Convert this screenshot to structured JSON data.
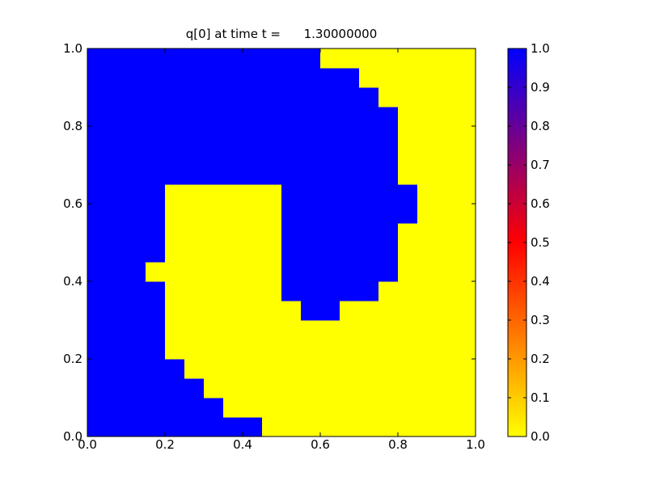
{
  "chart_data": {
    "type": "heatmap",
    "title": "q[0] at time t =      1.30000000",
    "xlim": [
      0,
      1
    ],
    "ylim": [
      0,
      1
    ],
    "xticks": [
      {
        "value": 0,
        "label": "0.0"
      },
      {
        "value": 0.2,
        "label": "0.2"
      },
      {
        "value": 0.4,
        "label": "0.4"
      },
      {
        "value": 0.6,
        "label": "0.6"
      },
      {
        "value": 0.8,
        "label": "0.8"
      },
      {
        "value": 1,
        "label": "1.0"
      }
    ],
    "yticks": [
      {
        "value": 0,
        "label": "0.0"
      },
      {
        "value": 0.2,
        "label": "0.2"
      },
      {
        "value": 0.4,
        "label": "0.4"
      },
      {
        "value": 0.6,
        "label": "0.6"
      },
      {
        "value": 0.8,
        "label": "0.8"
      },
      {
        "value": 1,
        "label": "1.0"
      }
    ],
    "colormap": [
      "#ffff00",
      "#ff0000",
      "#0000ff"
    ],
    "colorbar": {
      "lim": [
        0,
        1
      ],
      "ticks": [
        {
          "value": 0,
          "label": "0.0"
        },
        0.1,
        0.2,
        0.3,
        0.4,
        0.5,
        0.6,
        0.7,
        0.8,
        0.9,
        {
          "value": 1,
          "label": "1.0"
        }
      ]
    },
    "z": [
      [
        1,
        1,
        1,
        1,
        1,
        1,
        1,
        1,
        1,
        0,
        0,
        0,
        0,
        0,
        0,
        0,
        0,
        0,
        0,
        0
      ],
      [
        1,
        1,
        1,
        1,
        1,
        1,
        1,
        0,
        0,
        0,
        0,
        0,
        0,
        0,
        0,
        0,
        0,
        0,
        0,
        0
      ],
      [
        1,
        1,
        1,
        1,
        1,
        1,
        0,
        0,
        0,
        0,
        0,
        0,
        0,
        0,
        0,
        0,
        0,
        0,
        0,
        0
      ],
      [
        1,
        1,
        1,
        1,
        1,
        0,
        0,
        0,
        0,
        0,
        0,
        0,
        0,
        0,
        0,
        0,
        0,
        0,
        0,
        0
      ],
      [
        1,
        1,
        1,
        1,
        0,
        0,
        0,
        0,
        0,
        0,
        0,
        0,
        0,
        0,
        0,
        0,
        0,
        0,
        0,
        0
      ],
      [
        1,
        1,
        1,
        1,
        0,
        0,
        0,
        0,
        0,
        0,
        0,
        0,
        0,
        0,
        0,
        0,
        0,
        0,
        0,
        0
      ],
      [
        1,
        1,
        1,
        1,
        0,
        0,
        0,
        0,
        0,
        0,
        0,
        1,
        1,
        0,
        0,
        0,
        0,
        0,
        0,
        0
      ],
      [
        1,
        1,
        1,
        1,
        0,
        0,
        0,
        0,
        0,
        0,
        1,
        1,
        1,
        1,
        1,
        0,
        0,
        0,
        0,
        0
      ],
      [
        1,
        1,
        1,
        0,
        0,
        0,
        0,
        0,
        0,
        0,
        1,
        1,
        1,
        1,
        1,
        1,
        0,
        0,
        0,
        0
      ],
      [
        1,
        1,
        1,
        1,
        0,
        0,
        0,
        0,
        0,
        0,
        1,
        1,
        1,
        1,
        1,
        1,
        0,
        0,
        0,
        0
      ],
      [
        1,
        1,
        1,
        1,
        0,
        0,
        0,
        0,
        0,
        0,
        1,
        1,
        1,
        1,
        1,
        1,
        0,
        0,
        0,
        0
      ],
      [
        1,
        1,
        1,
        1,
        0,
        0,
        0,
        0,
        0,
        0,
        1,
        1,
        1,
        1,
        1,
        1,
        1,
        0,
        0,
        0
      ],
      [
        1,
        1,
        1,
        1,
        0,
        0,
        0,
        0,
        0,
        0,
        1,
        1,
        1,
        1,
        1,
        1,
        1,
        0,
        0,
        0
      ],
      [
        1,
        1,
        1,
        1,
        1,
        1,
        1,
        1,
        1,
        1,
        1,
        1,
        1,
        1,
        1,
        1,
        0,
        0,
        0,
        0
      ],
      [
        1,
        1,
        1,
        1,
        1,
        1,
        1,
        1,
        1,
        1,
        1,
        1,
        1,
        1,
        1,
        1,
        0,
        0,
        0,
        0
      ],
      [
        1,
        1,
        1,
        1,
        1,
        1,
        1,
        1,
        1,
        1,
        1,
        1,
        1,
        1,
        1,
        1,
        0,
        0,
        0,
        0
      ],
      [
        1,
        1,
        1,
        1,
        1,
        1,
        1,
        1,
        1,
        1,
        1,
        1,
        1,
        1,
        1,
        1,
        0,
        0,
        0,
        0
      ],
      [
        1,
        1,
        1,
        1,
        1,
        1,
        1,
        1,
        1,
        1,
        1,
        1,
        1,
        1,
        1,
        0,
        0,
        0,
        0,
        0
      ],
      [
        1,
        1,
        1,
        1,
        1,
        1,
        1,
        1,
        1,
        1,
        1,
        1,
        1,
        1,
        0,
        0,
        0,
        0,
        0,
        0
      ],
      [
        1,
        1,
        1,
        1,
        1,
        1,
        1,
        1,
        1,
        1,
        1,
        1,
        0,
        0,
        0,
        0,
        0,
        0,
        0,
        0
      ]
    ]
  }
}
